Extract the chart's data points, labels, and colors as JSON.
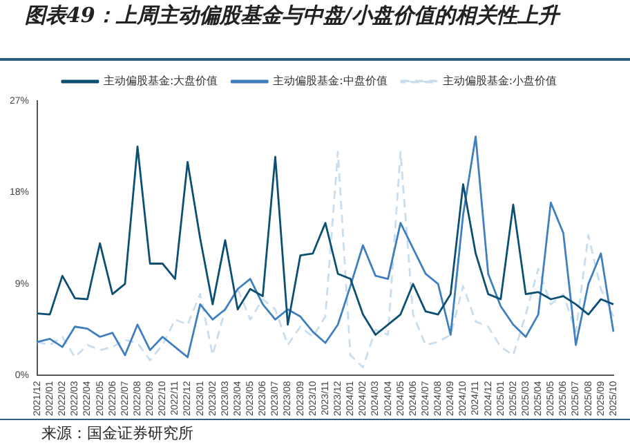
{
  "chart_data": {
    "type": "line",
    "title": "图表49：上周主动偏股基金与中盘/小盘价值的相关性上升",
    "categories": [
      "2021/12",
      "2022/01",
      "2022/02",
      "2022/03",
      "2022/04",
      "2022/05",
      "2022/06",
      "2022/07",
      "2022/08",
      "2022/09",
      "2022/10",
      "2022/11",
      "2022/12",
      "2023/01",
      "2023/02",
      "2023/03",
      "2023/04",
      "2023/05",
      "2023/06",
      "2023/07",
      "2023/08",
      "2023/09",
      "2023/10",
      "2023/11",
      "2023/12",
      "2024/01",
      "2024/02",
      "2024/03",
      "2024/04",
      "2024/05",
      "2024/06",
      "2024/07",
      "2024/08",
      "2024/09",
      "2024/10",
      "2024/11",
      "2024/12",
      "2025/01",
      "2025/02",
      "2025/03",
      "2025/04",
      "2025/05",
      "2025/06",
      "2025/07",
      "2025/08",
      "2025/09",
      "2025/10"
    ],
    "series": [
      {
        "name": "主动偏股基金:大盘价值",
        "color": "#0b4f73",
        "values": [
          6.1,
          6.0,
          9.8,
          7.6,
          7.5,
          13,
          8,
          9,
          22.5,
          11,
          11,
          9.5,
          21,
          13.5,
          7,
          13.3,
          6.5,
          8.5,
          7.8,
          21.5,
          5,
          11.8,
          12,
          15,
          10,
          9.5,
          6,
          4,
          5,
          6,
          9,
          6.3,
          6,
          8,
          18.8,
          12,
          8,
          7.5,
          16.8,
          8,
          8.2,
          7.5,
          7.8,
          7,
          6,
          7.5,
          7
        ]
      },
      {
        "name": "主动偏股基金:中盘价值",
        "color": "#3f7fc0",
        "values": [
          3.3,
          3.6,
          2.8,
          4.8,
          4.6,
          3.8,
          4.2,
          2,
          5,
          2.5,
          3.8,
          2.8,
          1.8,
          7,
          5.5,
          6.5,
          8.5,
          9.5,
          7,
          5.5,
          6.5,
          5.8,
          4.3,
          3.2,
          5,
          8.8,
          12.8,
          9.8,
          9.5,
          15,
          12.5,
          10,
          9,
          4,
          15.8,
          23.5,
          10,
          6.8,
          5,
          3.8,
          6,
          17,
          14,
          3,
          9,
          12,
          4.3
        ]
      },
      {
        "name": "主动偏股基金:小盘价值",
        "color": "#c9ddf0",
        "line_style": "dashed",
        "values": [
          3.3,
          3,
          3.8,
          1.8,
          3,
          2.5,
          2.8,
          3.5,
          3.2,
          1.5,
          3,
          5.5,
          5,
          8,
          2,
          6.5,
          8.5,
          5.5,
          7.5,
          6.5,
          3,
          4.8,
          3.8,
          5.8,
          22,
          2,
          0.8,
          4.5,
          4,
          22,
          6,
          3,
          3.3,
          4,
          8.8,
          5.3,
          4.8,
          2.8,
          2,
          6,
          10.5,
          7,
          8,
          4.3,
          13.8,
          8.5,
          5.8
        ]
      }
    ],
    "ylim": [
      0,
      27
    ],
    "yticks": [
      {
        "value": 0,
        "label": "0%"
      },
      {
        "value": 9,
        "label": "9%"
      },
      {
        "value": 18,
        "label": "18%"
      },
      {
        "value": 27,
        "label": "27%"
      }
    ],
    "grid": false,
    "legend": "top",
    "marker": "none",
    "line_style": "solid",
    "annotations": [
      "来源：国金证券研究所"
    ]
  }
}
